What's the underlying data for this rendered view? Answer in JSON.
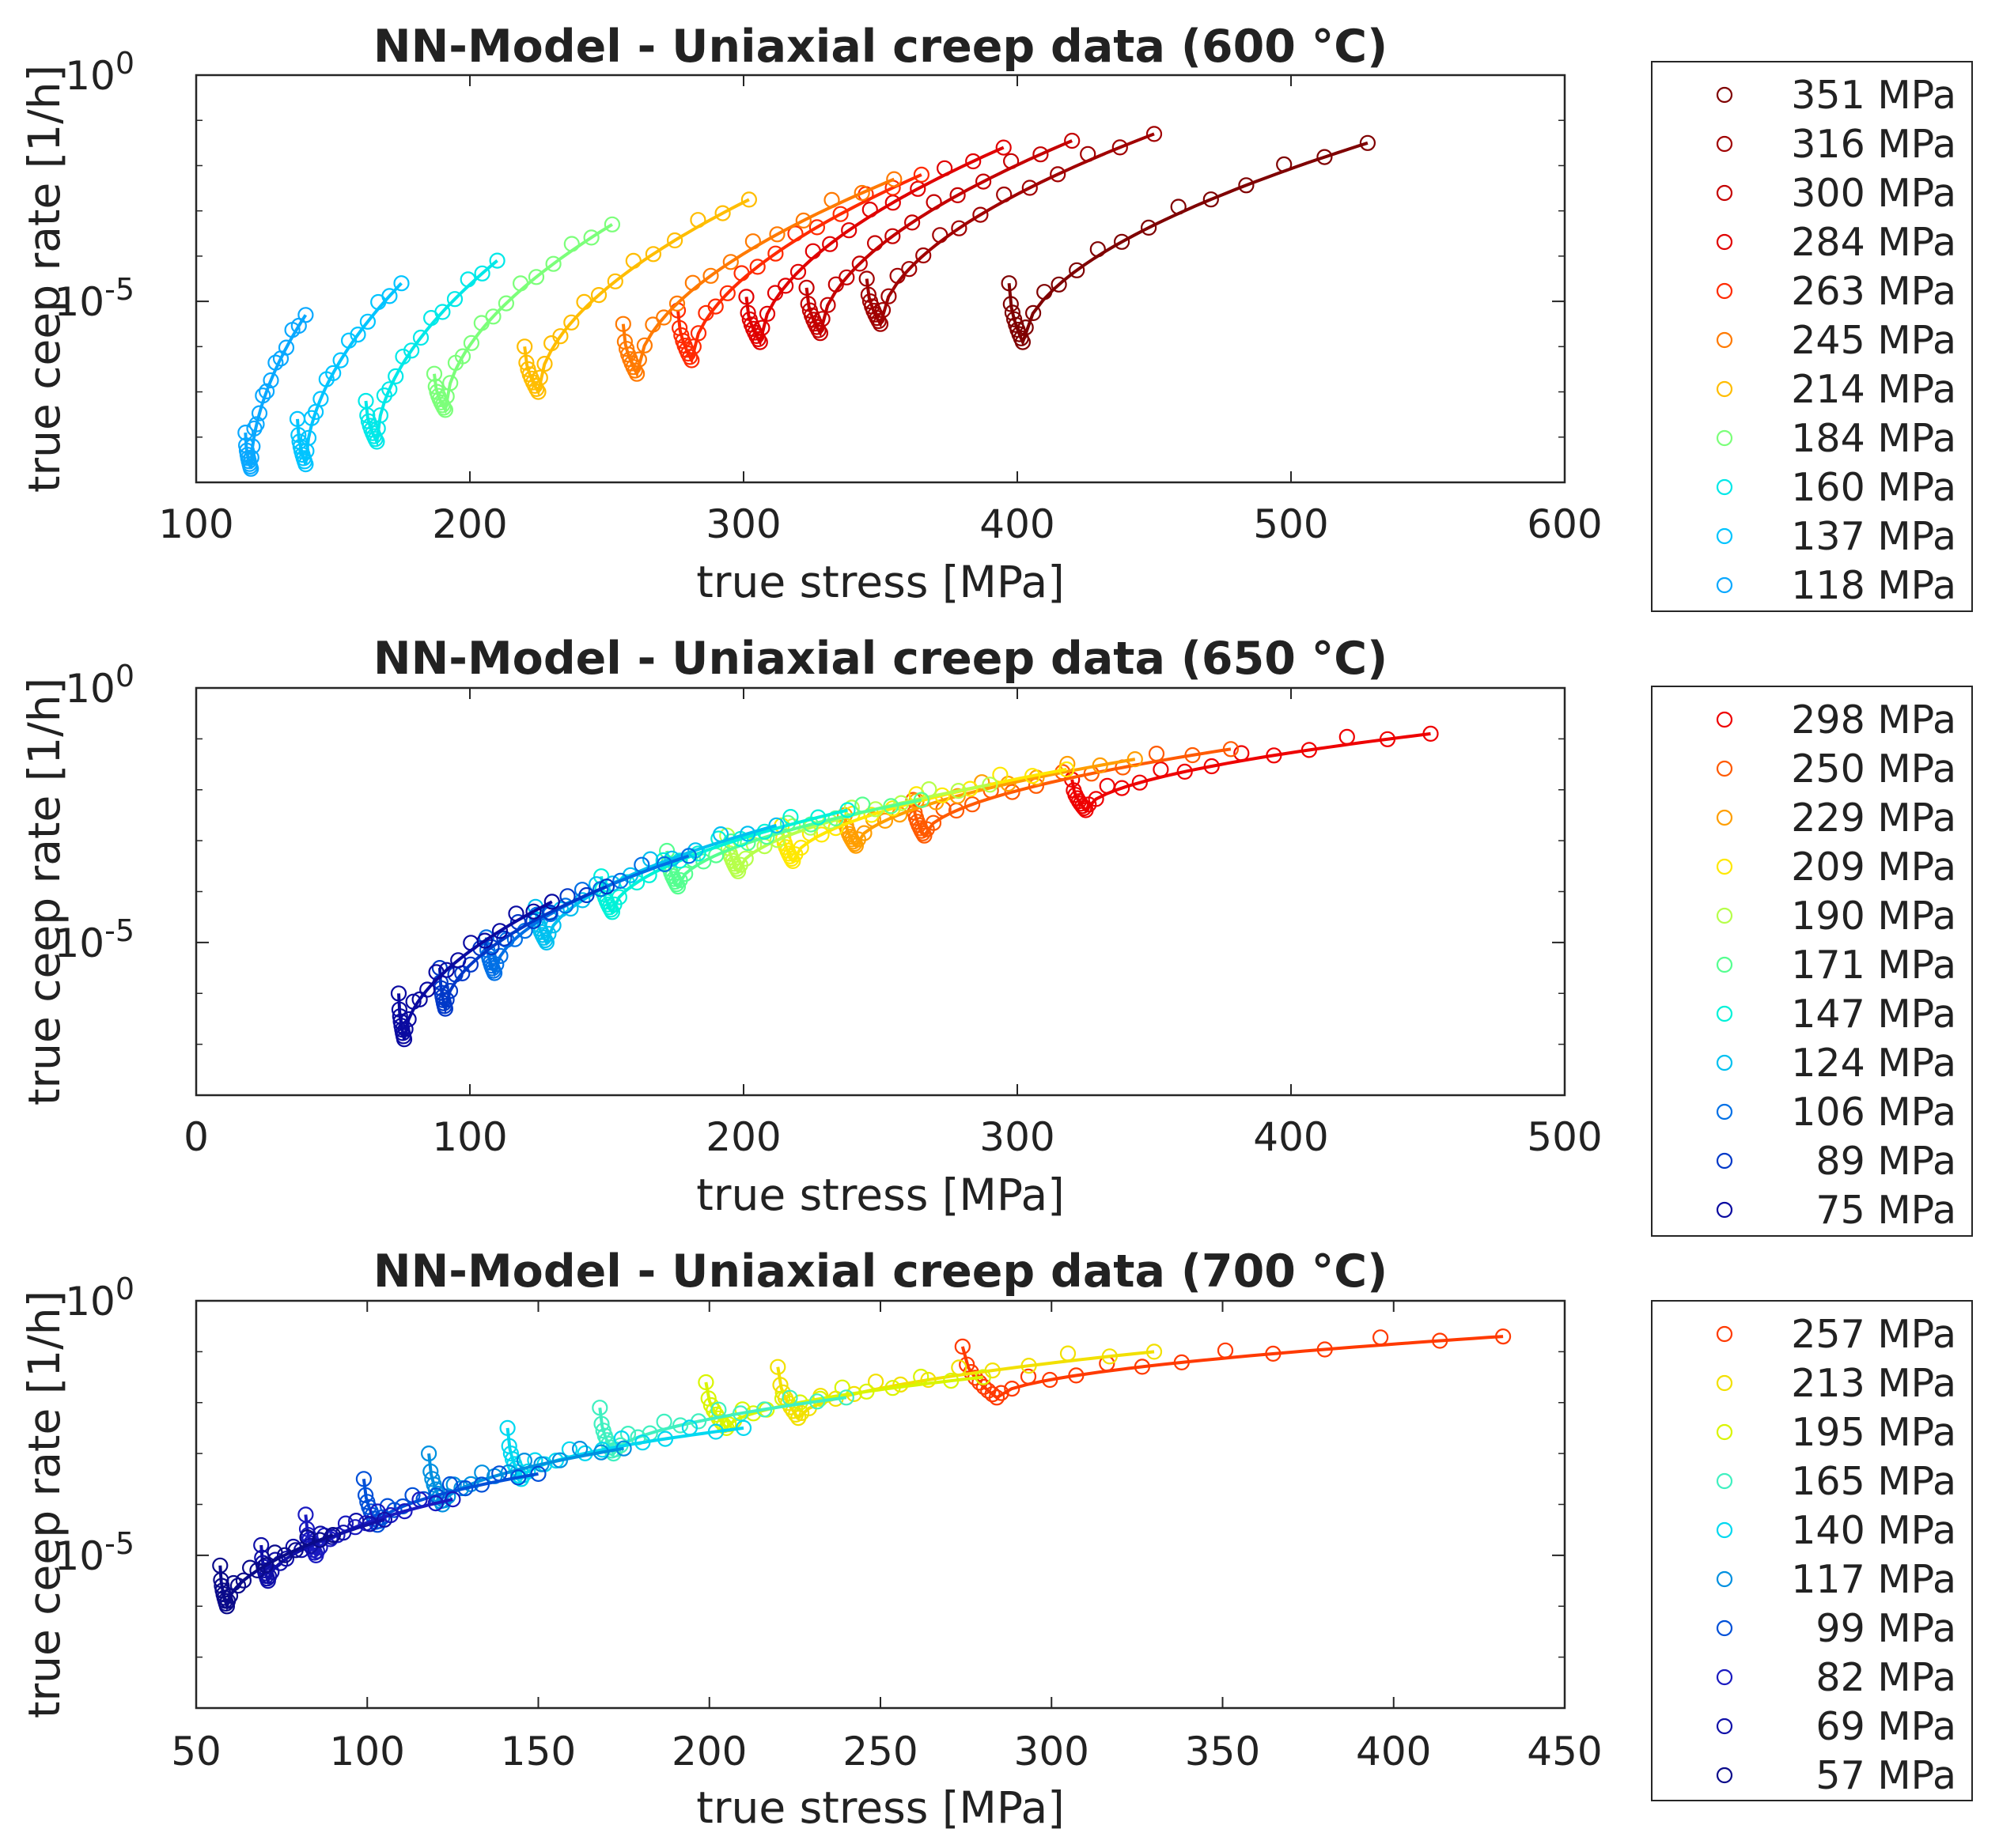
{
  "chart_data": [
    {
      "type": "scatter",
      "title": "NN-Model - Uniaxial creep data (600 °C)",
      "xlabel": "true stress [MPa]",
      "ylabel": "true ceep rate [1/h]",
      "xlim": [
        100,
        600
      ],
      "ylim_log10": [
        -9,
        0
      ],
      "xticks": [
        "100",
        "200",
        "300",
        "400",
        "500",
        "600"
      ],
      "y_scale": "log",
      "yticks": [
        {
          "base": "10",
          "exp": "0",
          "log10": 0
        },
        {
          "base": "10",
          "exp": "-5",
          "log10": -5
        }
      ],
      "legend_position": "right",
      "series": [
        {
          "name": "351 MPa",
          "color": "#7f0000",
          "start_x": 397,
          "start_log": -4.6,
          "min_log": -5.9,
          "min_x": 402,
          "end_x": 528,
          "end_log": -1.5
        },
        {
          "name": "316 MPa",
          "color": "#a00000",
          "start_x": 345,
          "start_log": -4.5,
          "min_log": -5.5,
          "min_x": 350,
          "end_x": 450,
          "end_log": -1.3
        },
        {
          "name": "300 MPa",
          "color": "#c40000",
          "start_x": 323,
          "start_log": -4.7,
          "min_log": -5.7,
          "min_x": 328,
          "end_x": 420,
          "end_log": -1.45
        },
        {
          "name": "284 MPa",
          "color": "#e00000",
          "start_x": 301,
          "start_log": -4.9,
          "min_log": -5.9,
          "min_x": 306,
          "end_x": 395,
          "end_log": -1.6
        },
        {
          "name": "263 MPa",
          "color": "#ff2a00",
          "start_x": 276,
          "start_log": -5.2,
          "min_log": -6.3,
          "min_x": 281,
          "end_x": 365,
          "end_log": -2.2
        },
        {
          "name": "245 MPa",
          "color": "#ff7a00",
          "start_x": 256,
          "start_log": -5.5,
          "min_log": -6.6,
          "min_x": 261,
          "end_x": 355,
          "end_log": -2.3
        },
        {
          "name": "214 MPa",
          "color": "#ffbd00",
          "start_x": 220,
          "start_log": -6.0,
          "min_log": -7.0,
          "min_x": 225,
          "end_x": 302,
          "end_log": -2.75
        },
        {
          "name": "184 MPa",
          "color": "#7cff7a",
          "start_x": 187,
          "start_log": -6.6,
          "min_log": -7.4,
          "min_x": 191,
          "end_x": 252,
          "end_log": -3.3
        },
        {
          "name": "160 MPa",
          "color": "#00e8e8",
          "start_x": 162,
          "start_log": -7.2,
          "min_log": -8.1,
          "min_x": 166,
          "end_x": 210,
          "end_log": -4.1
        },
        {
          "name": "137 MPa",
          "color": "#00c4ff",
          "start_x": 137,
          "start_log": -7.6,
          "min_log": -8.6,
          "min_x": 140,
          "end_x": 175,
          "end_log": -4.6
        },
        {
          "name": "118 MPa",
          "color": "#0aa8ff",
          "start_x": 118,
          "start_log": -7.9,
          "min_log": -8.7,
          "min_x": 120,
          "end_x": 140,
          "end_log": -5.3
        }
      ]
    },
    {
      "type": "scatter",
      "title": "NN-Model - Uniaxial creep data (650 °C)",
      "xlabel": "true stress [MPa]",
      "ylabel": "true ceep rate [1/h]",
      "xlim": [
        0,
        500
      ],
      "ylim_log10": [
        -8,
        0
      ],
      "xticks": [
        "0",
        "100",
        "200",
        "300",
        "400",
        "500"
      ],
      "y_scale": "log",
      "yticks": [
        {
          "base": "10",
          "exp": "0",
          "log10": 0
        },
        {
          "base": "10",
          "exp": "-5",
          "log10": -5
        }
      ],
      "legend_position": "right",
      "series": [
        {
          "name": "298 MPa",
          "color": "#ee0000",
          "start_x": 320,
          "start_log": -1.8,
          "min_log": -2.4,
          "min_x": 325,
          "end_x": 451,
          "end_log": -0.9
        },
        {
          "name": "250 MPa",
          "color": "#ff5a00",
          "start_x": 262,
          "start_log": -2.2,
          "min_log": -2.9,
          "min_x": 266,
          "end_x": 378,
          "end_log": -1.2
        },
        {
          "name": "229 MPa",
          "color": "#ff9e00",
          "start_x": 237,
          "start_log": -2.5,
          "min_log": -3.1,
          "min_x": 241,
          "end_x": 343,
          "end_log": -1.4
        },
        {
          "name": "209 MPa",
          "color": "#ffe800",
          "start_x": 214,
          "start_log": -2.7,
          "min_log": -3.4,
          "min_x": 218,
          "end_x": 318,
          "end_log": -1.6
        },
        {
          "name": "190 MPa",
          "color": "#b6ff4a",
          "start_x": 194,
          "start_log": -2.9,
          "min_log": -3.6,
          "min_x": 198,
          "end_x": 290,
          "end_log": -1.9
        },
        {
          "name": "171 MPa",
          "color": "#55ff90",
          "start_x": 172,
          "start_log": -3.2,
          "min_log": -3.9,
          "min_x": 176,
          "end_x": 265,
          "end_log": -2.2
        },
        {
          "name": "147 MPa",
          "color": "#00f2d8",
          "start_x": 148,
          "start_log": -3.7,
          "min_log": -4.4,
          "min_x": 152,
          "end_x": 238,
          "end_log": -2.4
        },
        {
          "name": "124 MPa",
          "color": "#00c0f0",
          "start_x": 124,
          "start_log": -4.3,
          "min_log": -5.0,
          "min_x": 128,
          "end_x": 212,
          "end_log": -2.7
        },
        {
          "name": "106 MPa",
          "color": "#0070e6",
          "start_x": 106,
          "start_log": -4.9,
          "min_log": -5.6,
          "min_x": 109,
          "end_x": 180,
          "end_log": -3.3
        },
        {
          "name": "89 MPa",
          "color": "#0038c8",
          "start_x": 89,
          "start_log": -5.5,
          "min_log": -6.3,
          "min_x": 91,
          "end_x": 150,
          "end_log": -3.9
        },
        {
          "name": "75 MPa",
          "color": "#0a0aa0",
          "start_x": 74,
          "start_log": -6.0,
          "min_log": -6.9,
          "min_x": 76,
          "end_x": 130,
          "end_log": -4.2
        }
      ]
    },
    {
      "type": "scatter",
      "title": "NN-Model - Uniaxial creep data (700 °C)",
      "xlabel": "true stress [MPa]",
      "ylabel": "true ceep rate [1/h]",
      "xlim": [
        50,
        450
      ],
      "ylim_log10": [
        -8,
        0
      ],
      "xticks": [
        "50",
        "100",
        "150",
        "200",
        "250",
        "300",
        "350",
        "400",
        "450"
      ],
      "y_scale": "log",
      "yticks": [
        {
          "base": "10",
          "exp": "0",
          "log10": 0
        },
        {
          "base": "10",
          "exp": "-5",
          "log10": -5
        }
      ],
      "legend_position": "right",
      "series": [
        {
          "name": "257 MPa",
          "color": "#ff3a00",
          "start_x": 274,
          "start_log": -0.9,
          "min_log": -1.9,
          "min_x": 284,
          "end_x": 432,
          "end_log": -0.7
        },
        {
          "name": "213 MPa",
          "color": "#f2e000",
          "start_x": 220,
          "start_log": -1.3,
          "min_log": -2.3,
          "min_x": 226,
          "end_x": 330,
          "end_log": -1.0
        },
        {
          "name": "195 MPa",
          "color": "#d9f500",
          "start_x": 199,
          "start_log": -1.6,
          "min_log": -2.5,
          "min_x": 205,
          "end_x": 280,
          "end_log": -1.5
        },
        {
          "name": "165 MPa",
          "color": "#40f0c0",
          "start_x": 168,
          "start_log": -2.1,
          "min_log": -3.0,
          "min_x": 172,
          "end_x": 240,
          "end_log": -1.9
        },
        {
          "name": "140 MPa",
          "color": "#00d8f0",
          "start_x": 141,
          "start_log": -2.5,
          "min_log": -3.5,
          "min_x": 145,
          "end_x": 210,
          "end_log": -2.5
        },
        {
          "name": "117 MPa",
          "color": "#0090e0",
          "start_x": 118,
          "start_log": -3.0,
          "min_log": -4.0,
          "min_x": 122,
          "end_x": 175,
          "end_log": -2.9
        },
        {
          "name": "99 MPa",
          "color": "#0050d8",
          "start_x": 99,
          "start_log": -3.5,
          "min_log": -4.4,
          "min_x": 103,
          "end_x": 150,
          "end_log": -3.4
        },
        {
          "name": "82 MPa",
          "color": "#1a1ac0",
          "start_x": 82,
          "start_log": -4.2,
          "min_log": -5.0,
          "min_x": 85,
          "end_x": 125,
          "end_log": -3.9
        },
        {
          "name": "69 MPa",
          "color": "#1010a8",
          "start_x": 69,
          "start_log": -4.8,
          "min_log": -5.5,
          "min_x": 71,
          "end_x": 105,
          "end_log": -4.3
        },
        {
          "name": "57 MPa",
          "color": "#0a0a8a",
          "start_x": 57,
          "start_log": -5.2,
          "min_log": -6.0,
          "min_x": 59,
          "end_x": 90,
          "end_log": -4.6
        }
      ]
    }
  ]
}
